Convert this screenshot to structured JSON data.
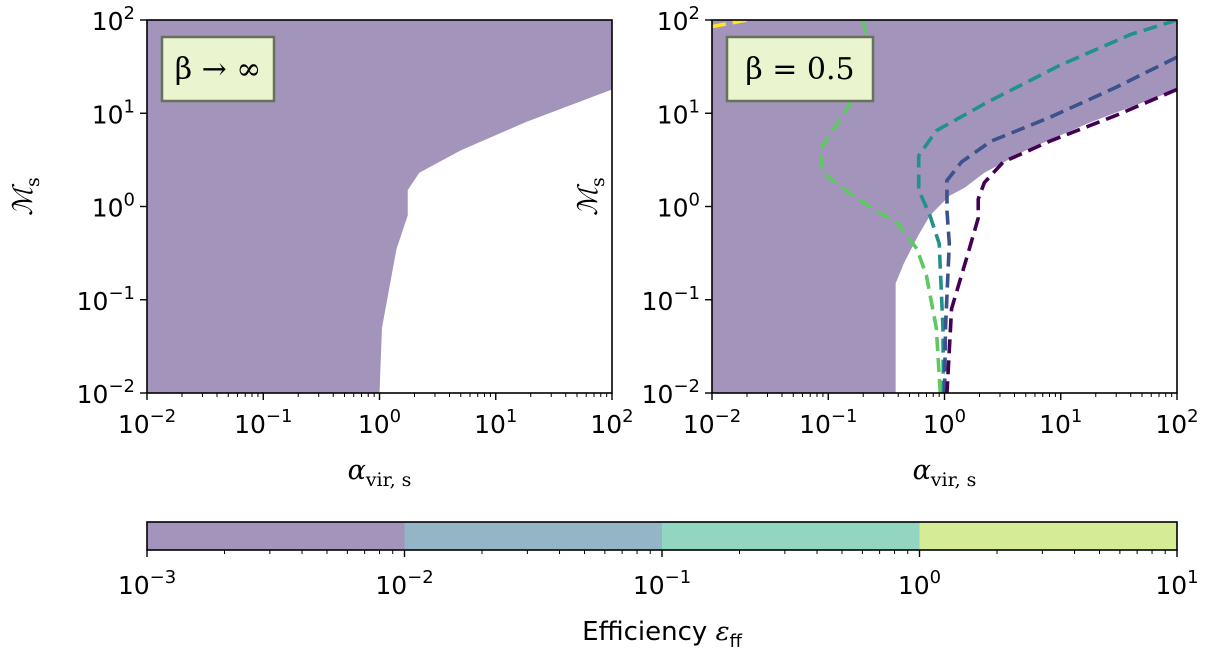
{
  "chart_data": [
    {
      "type": "area",
      "panel": "left",
      "annotation": "β → ∞",
      "xlabel": "α_vir,s",
      "ylabel": "M_s",
      "xscale": "log",
      "yscale": "log",
      "xlim": [
        0.01,
        100
      ],
      "ylim": [
        0.01,
        100
      ],
      "x_tick_labels": [
        "10^-2",
        "10^-1",
        "10^0",
        "10^1",
        "10^2"
      ],
      "y_tick_labels": [
        "10^-2",
        "10^-1",
        "10^0",
        "10^1",
        "10^2"
      ],
      "region_boundaries": [
        {
          "level": "1e0",
          "points": [
            [
              100,
              100
            ],
            [
              15,
              100
            ],
            [
              4,
              50
            ],
            [
              1.0,
              18
            ],
            [
              0.35,
              10
            ],
            [
              0.15,
              6
            ],
            [
              0.085,
              3.5
            ],
            [
              0.12,
              2.2
            ],
            [
              0.3,
              1.3
            ],
            [
              0.6,
              0.8
            ],
            [
              0.8,
              0.3
            ],
            [
              0.9,
              0.1
            ],
            [
              0.98,
              0.01
            ]
          ]
        },
        {
          "level": "1e-1",
          "points": [
            [
              100,
              100
            ],
            [
              60,
              100
            ],
            [
              10,
              40
            ],
            [
              2.3,
              14
            ],
            [
              0.85,
              6
            ],
            [
              0.55,
              2.5
            ],
            [
              0.6,
              1.1
            ],
            [
              0.85,
              0.5
            ],
            [
              0.95,
              0.1
            ],
            [
              0.98,
              0.01
            ]
          ]
        },
        {
          "level": "1e-2",
          "points": [
            [
              100,
              100
            ],
            [
              100,
              40
            ],
            [
              16,
              14
            ],
            [
              5,
              6
            ],
            [
              2.2,
              3
            ],
            [
              1.5,
              1.4
            ],
            [
              1.3,
              0.6
            ],
            [
              1.05,
              0.15
            ],
            [
              1.0,
              0.01
            ]
          ]
        },
        {
          "level": "1e-3",
          "points": [
            [
              100,
              40
            ],
            [
              100,
              18
            ],
            [
              18,
              8
            ],
            [
              5,
              4
            ],
            [
              2.2,
              2.3
            ],
            [
              1.75,
              1.5
            ],
            [
              1.75,
              0.8
            ],
            [
              1.4,
              0.35
            ],
            [
              1.05,
              0.05
            ],
            [
              1.0,
              0.01
            ]
          ]
        }
      ]
    },
    {
      "type": "area",
      "panel": "right",
      "annotation": "β = 0.5",
      "xlabel": "α_vir,s",
      "ylabel": "M_s",
      "xscale": "log",
      "yscale": "log",
      "xlim": [
        0.01,
        100
      ],
      "ylim": [
        0.01,
        100
      ],
      "x_tick_labels": [
        "10^-2",
        "10^-1",
        "10^0",
        "10^1",
        "10^2"
      ],
      "y_tick_labels": [
        "10^-2",
        "10^-1",
        "10^0",
        "10^1",
        "10^2"
      ],
      "region_boundaries": [
        {
          "level": "1e0",
          "points": [
            [
              100,
              100
            ],
            [
              15,
              100
            ],
            [
              4,
              50
            ],
            [
              1.0,
              20
            ],
            [
              0.4,
              12
            ],
            [
              0.15,
              7
            ],
            [
              0.08,
              5
            ],
            [
              0.1,
              3
            ],
            [
              0.2,
              2
            ],
            [
              0.3,
              1.4
            ],
            [
              0.35,
              0.8
            ],
            [
              0.33,
              0.3
            ],
            [
              0.33,
              0.01
            ]
          ]
        },
        {
          "level": "1e-1",
          "points": [
            [
              100,
              100
            ],
            [
              60,
              100
            ],
            [
              10,
              40
            ],
            [
              2.3,
              14
            ],
            [
              0.85,
              6
            ],
            [
              0.6,
              3
            ],
            [
              0.6,
              1.5
            ],
            [
              0.5,
              0.8
            ],
            [
              0.4,
              0.4
            ],
            [
              0.34,
              0.15
            ],
            [
              0.33,
              0.01
            ]
          ]
        },
        {
          "level": "1e-2",
          "points": [
            [
              100,
              100
            ],
            [
              100,
              40
            ],
            [
              16,
              14
            ],
            [
              5,
              6
            ],
            [
              2.2,
              3
            ],
            [
              1.4,
              2
            ],
            [
              1.1,
              1.5
            ],
            [
              0.75,
              0.9
            ],
            [
              0.55,
              0.5
            ],
            [
              0.4,
              0.2
            ],
            [
              0.35,
              0.1
            ]
          ]
        },
        {
          "level": "1e-3",
          "points": [
            [
              100,
              40
            ],
            [
              100,
              18
            ],
            [
              18,
              8
            ],
            [
              5,
              4
            ],
            [
              2.2,
              2.3
            ],
            [
              1.5,
              1.6
            ],
            [
              1.1,
              1.3
            ],
            [
              0.75,
              0.8
            ],
            [
              0.6,
              0.5
            ],
            [
              0.45,
              0.25
            ],
            [
              0.38,
              0.15
            ]
          ]
        }
      ],
      "dashed_reference_lines": [
        {
          "color": "#5ec962",
          "points": [
            [
              0.2,
              100
            ],
            [
              0.22,
              50
            ],
            [
              0.15,
              12
            ],
            [
              0.085,
              4
            ],
            [
              0.09,
              2.3
            ],
            [
              0.18,
              1.2
            ],
            [
              0.4,
              0.65
            ],
            [
              0.58,
              0.35
            ],
            [
              0.7,
              0.18
            ],
            [
              0.85,
              0.05
            ],
            [
              0.92,
              0.01
            ]
          ]
        },
        {
          "color": "#21918c",
          "points": [
            [
              100,
              100
            ],
            [
              40,
              70
            ],
            [
              10,
              33
            ],
            [
              2.3,
              13
            ],
            [
              0.85,
              6.5
            ],
            [
              0.6,
              3.5
            ],
            [
              0.6,
              1.5
            ],
            [
              0.75,
              0.8
            ],
            [
              0.9,
              0.4
            ],
            [
              0.97,
              0.05
            ],
            [
              0.98,
              0.01
            ]
          ]
        },
        {
          "color": "#3b528b",
          "points": [
            [
              100,
              40
            ],
            [
              30,
              19
            ],
            [
              8,
              9
            ],
            [
              2.5,
              5
            ],
            [
              1.4,
              3
            ],
            [
              1.05,
              1.9
            ],
            [
              1.05,
              0.9
            ],
            [
              1.1,
              0.4
            ],
            [
              1.02,
              0.05
            ],
            [
              1.0,
              0.01
            ]
          ]
        },
        {
          "color": "#440154",
          "points": [
            [
              100,
              18
            ],
            [
              30,
              9.5
            ],
            [
              8,
              5
            ],
            [
              3.2,
              3
            ],
            [
              2.2,
              1.8
            ],
            [
              1.95,
              1.2
            ],
            [
              1.95,
              0.75
            ],
            [
              1.6,
              0.32
            ],
            [
              1.15,
              0.08
            ],
            [
              1.05,
              0.01
            ]
          ]
        },
        {
          "color": "#fde725",
          "points": [
            [
              0.01,
              85
            ],
            [
              0.014,
              92
            ],
            [
              0.02,
              100
            ]
          ]
        }
      ]
    }
  ],
  "colorbar": {
    "label": "Efficiency ε_ff",
    "scale": "log",
    "range": [
      0.001,
      10
    ],
    "tick_labels": [
      "10^-3",
      "10^-2",
      "10^-1",
      "10^0",
      "10^1"
    ],
    "bins": [
      {
        "from": 0.001,
        "to": 0.01,
        "color": "#a294bb"
      },
      {
        "from": 0.01,
        "to": 0.1,
        "color": "#93b5c6"
      },
      {
        "from": 0.1,
        "to": 1,
        "color": "#92d5c0"
      },
      {
        "from": 1,
        "to": 10,
        "color": "#d6eb95"
      }
    ]
  },
  "colors": {
    "level_1e-3": "#a294bb",
    "level_1e-2": "#93b5c6",
    "level_1e-1": "#92d5c0",
    "level_1e0": "#d6eb95",
    "label_box_fill": "#eaf4cf",
    "label_box_edge": "#66705a"
  }
}
